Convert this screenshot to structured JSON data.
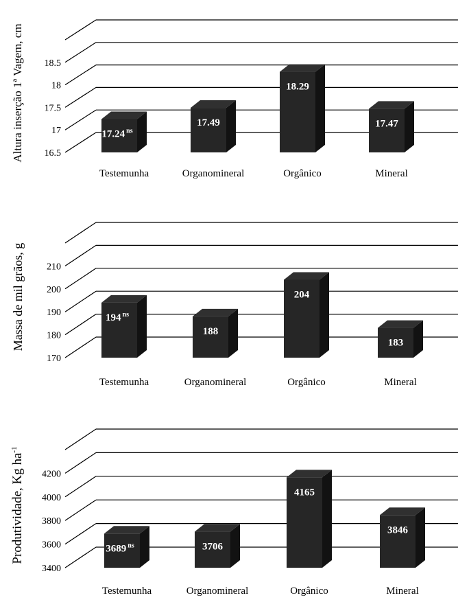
{
  "chart_data": [
    {
      "type": "bar",
      "ylabel": "Altura inserção 1ª Vagem, cm",
      "categories": [
        "Testemunha",
        "Organomineral",
        "Orgânico",
        "Mineral"
      ],
      "values": [
        17.24,
        17.49,
        18.29,
        17.47
      ],
      "value_labels": [
        "17.24",
        "17.49",
        "18.29",
        "17.47"
      ],
      "annotation": "ns",
      "yticks": [
        "16.5",
        "17",
        "17.5",
        "18",
        "18.5"
      ],
      "ylim": [
        16.5,
        18.5
      ],
      "bar_color": "#262626",
      "grid": true,
      "legend": false
    },
    {
      "type": "bar",
      "ylabel": "Massa de mil grãos, g",
      "categories": [
        "Testemunha",
        "Organomineral",
        "Orgânico",
        "Mineral"
      ],
      "values": [
        194,
        188,
        204,
        183
      ],
      "value_labels": [
        "194",
        "188",
        "204",
        "183"
      ],
      "annotation": "ns",
      "yticks": [
        "170",
        "180",
        "190",
        "200",
        "210"
      ],
      "ylim": [
        170,
        210
      ],
      "bar_color": "#262626",
      "grid": true,
      "legend": false
    },
    {
      "type": "bar",
      "ylabel": "Produtividade, Kg ha",
      "ylabel_superscript": "-1",
      "categories": [
        "Testemunha",
        "Organomineral",
        "Orgânico",
        "Mineral"
      ],
      "values": [
        3689,
        3706,
        4165,
        3846
      ],
      "value_labels": [
        "3689",
        "3706",
        "4165",
        "3846"
      ],
      "annotation": "ns",
      "yticks": [
        "3400",
        "3600",
        "3800",
        "4000",
        "4200"
      ],
      "ylim": [
        3400,
        4200
      ],
      "bar_color": "#262626",
      "grid": true,
      "legend": false
    }
  ]
}
